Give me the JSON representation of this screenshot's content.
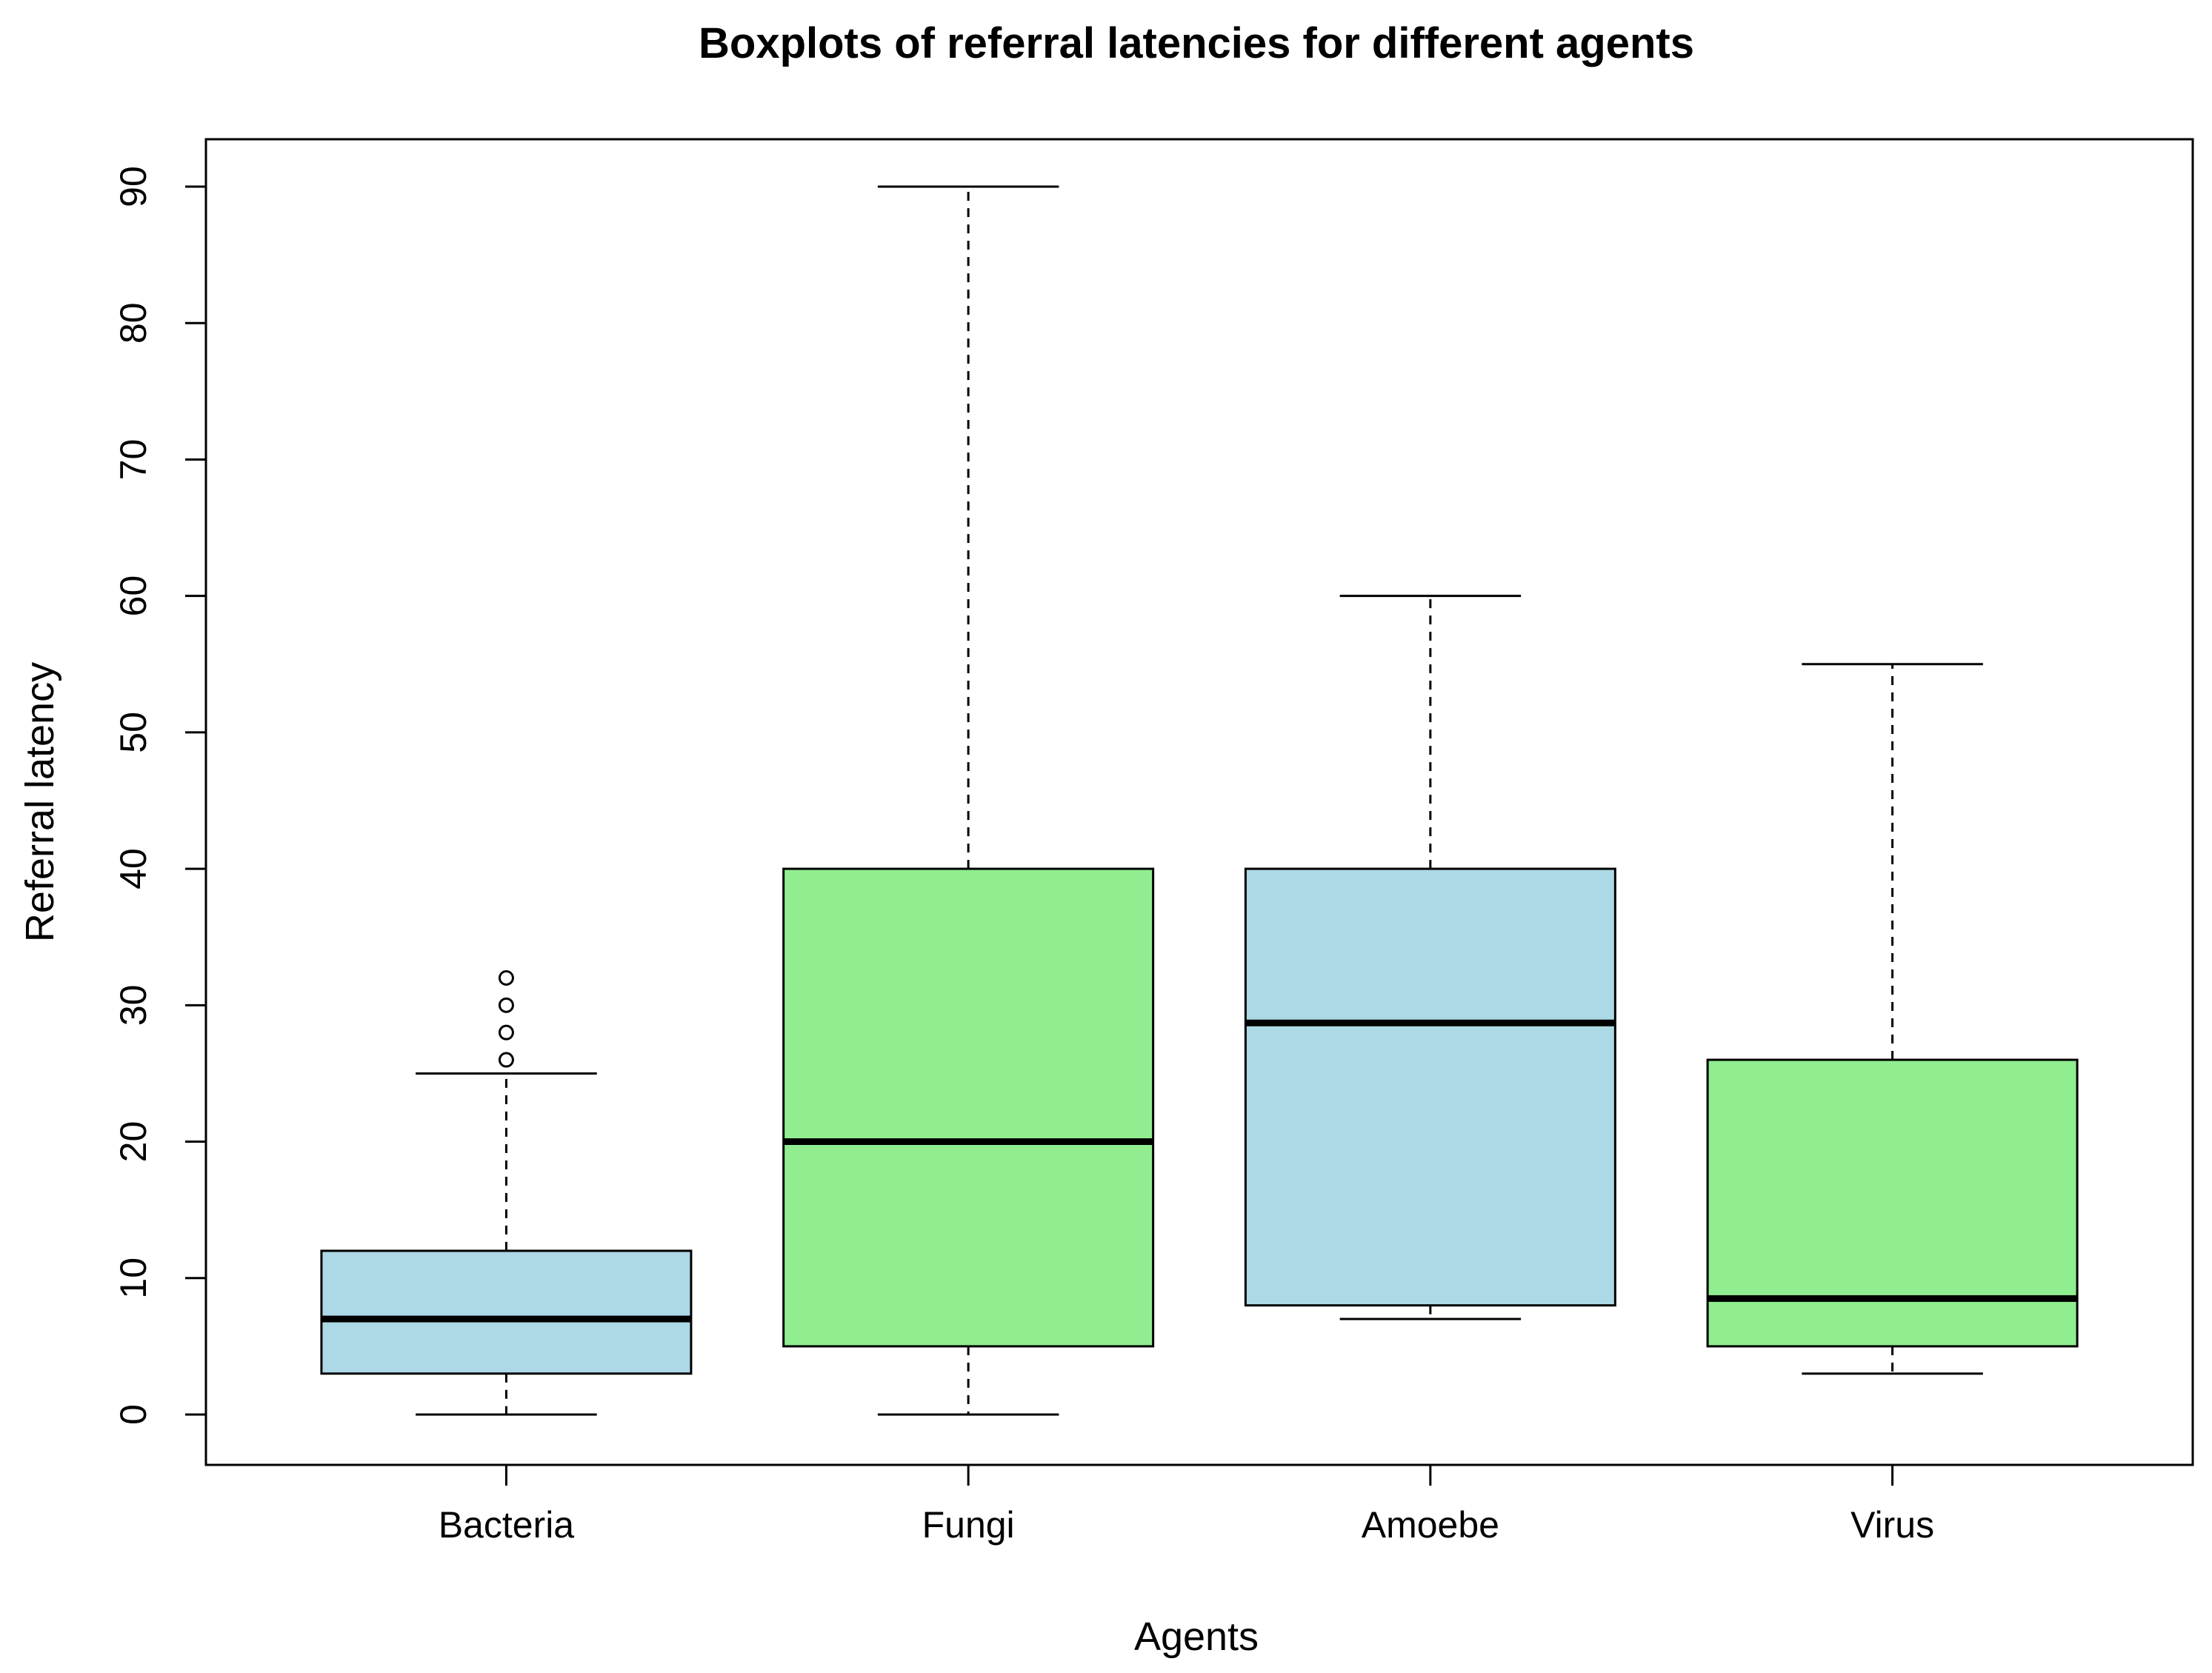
{
  "chart_data": {
    "type": "boxplot",
    "title": "Boxplots of referral latencies for different agents",
    "xlabel": "Agents",
    "ylabel": "Referral latency",
    "ylim": [
      -3.6,
      93.6
    ],
    "yticks": [
      0,
      10,
      20,
      30,
      40,
      50,
      60,
      70,
      80,
      90
    ],
    "categories": [
      "Bacteria",
      "Fungi",
      "Amoebe",
      "Virus"
    ],
    "series": [
      {
        "name": "Bacteria",
        "whisker_low": 0,
        "q1": 3,
        "median": 7,
        "q3": 12,
        "whisker_high": 25,
        "outliers": [
          26,
          28,
          30,
          32
        ],
        "color": "#add8e6"
      },
      {
        "name": "Fungi",
        "whisker_low": 0,
        "q1": 5,
        "median": 20,
        "q3": 40,
        "whisker_high": 90,
        "outliers": [],
        "color": "#90ee90"
      },
      {
        "name": "Amoebe",
        "whisker_low": 7,
        "q1": 8,
        "median": 28.7,
        "q3": 40,
        "whisker_high": 60,
        "outliers": [],
        "color": "#add8e6"
      },
      {
        "name": "Virus",
        "whisker_low": 3,
        "q1": 5,
        "median": 8.5,
        "q3": 26,
        "whisker_high": 55,
        "outliers": [],
        "color": "#90ee90"
      }
    ],
    "grid": false,
    "legend": "none"
  }
}
